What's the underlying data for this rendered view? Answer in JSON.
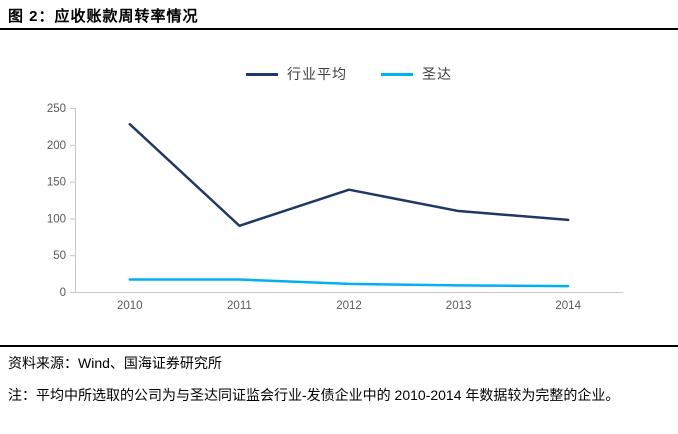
{
  "figure": {
    "title": "图 2：应收账款周转率情况",
    "source": "资料来源：Wind、国海证券研究所",
    "note": "注：平均中所选取的公司为与圣达同证监会行业-发债企业中的 2010-2014 年数据较为完整的企业。"
  },
  "chart_data": {
    "type": "line",
    "categories": [
      "2010",
      "2011",
      "2012",
      "2013",
      "2014"
    ],
    "series": [
      {
        "name": "行业平均",
        "color": "#1f3864",
        "values": [
          228,
          90,
          139,
          110,
          98
        ]
      },
      {
        "name": "圣达",
        "color": "#00b0f0",
        "values": [
          17,
          17,
          11,
          9,
          8
        ]
      }
    ],
    "title": "",
    "xlabel": "",
    "ylabel": "",
    "ylim": [
      0,
      250
    ],
    "yticks": [
      0,
      50,
      100,
      150,
      200,
      250
    ],
    "legend_position": "top-center",
    "grid": false,
    "axis_color": "#c6c6c6",
    "tick_label_color": "#595959"
  }
}
